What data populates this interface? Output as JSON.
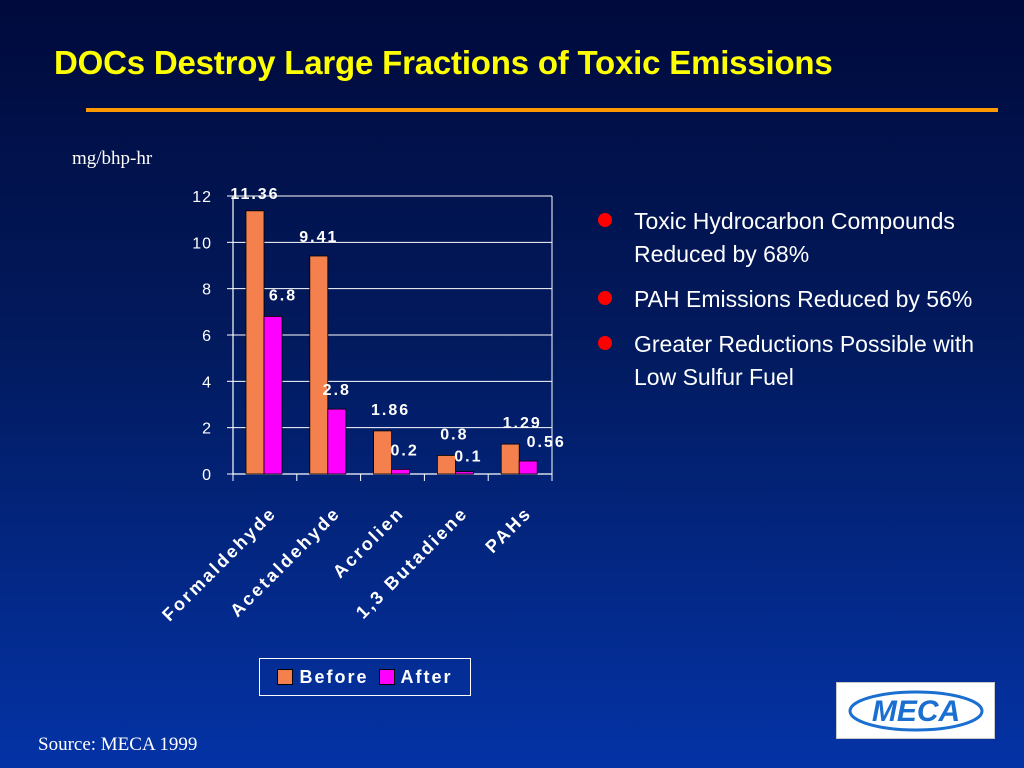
{
  "slide": {
    "title": "DOCs Destroy Large Fractions of  Toxic Emissions",
    "unit_label": "mg/bhp-hr",
    "source": "Source: MECA 1999",
    "logo_text": "MECA"
  },
  "bullets": [
    {
      "text": "Toxic Hydrocarbon Compounds Reduced by 68%"
    },
    {
      "text": "PAH Emissions Reduced by 56%"
    },
    {
      "text": "Greater Reductions Possible with Low Sulfur Fuel"
    }
  ],
  "colors": {
    "title": "#ffff00",
    "rule": "#ff9900",
    "before": "#f4804e",
    "after": "#ff00ff",
    "bullet": "#ff0000",
    "text": "#ffffff",
    "logo": "#1b6fd0"
  },
  "chart_data": {
    "type": "bar",
    "title": "",
    "ylabel": "mg/bhp-hr",
    "xlabel": "",
    "categories": [
      "Formaldehyde",
      "Acetaldehyde",
      "Acrolien",
      "1,3 Butadiene",
      "PAHs"
    ],
    "series": [
      {
        "name": "Before",
        "values": [
          11.36,
          9.41,
          1.86,
          0.8,
          1.29
        ],
        "labels": [
          "11.36",
          "9.41",
          "1.86",
          "0.8",
          "1.29"
        ]
      },
      {
        "name": "After",
        "values": [
          6.8,
          2.8,
          0.2,
          0.1,
          0.56
        ],
        "labels": [
          "6.8",
          "2.8",
          "0.2",
          "0.1",
          "0.56"
        ]
      }
    ],
    "ylim": [
      0,
      12
    ],
    "yticks": [
      0,
      2,
      4,
      6,
      8,
      10,
      12
    ],
    "grid": true,
    "legend": "bottom"
  }
}
